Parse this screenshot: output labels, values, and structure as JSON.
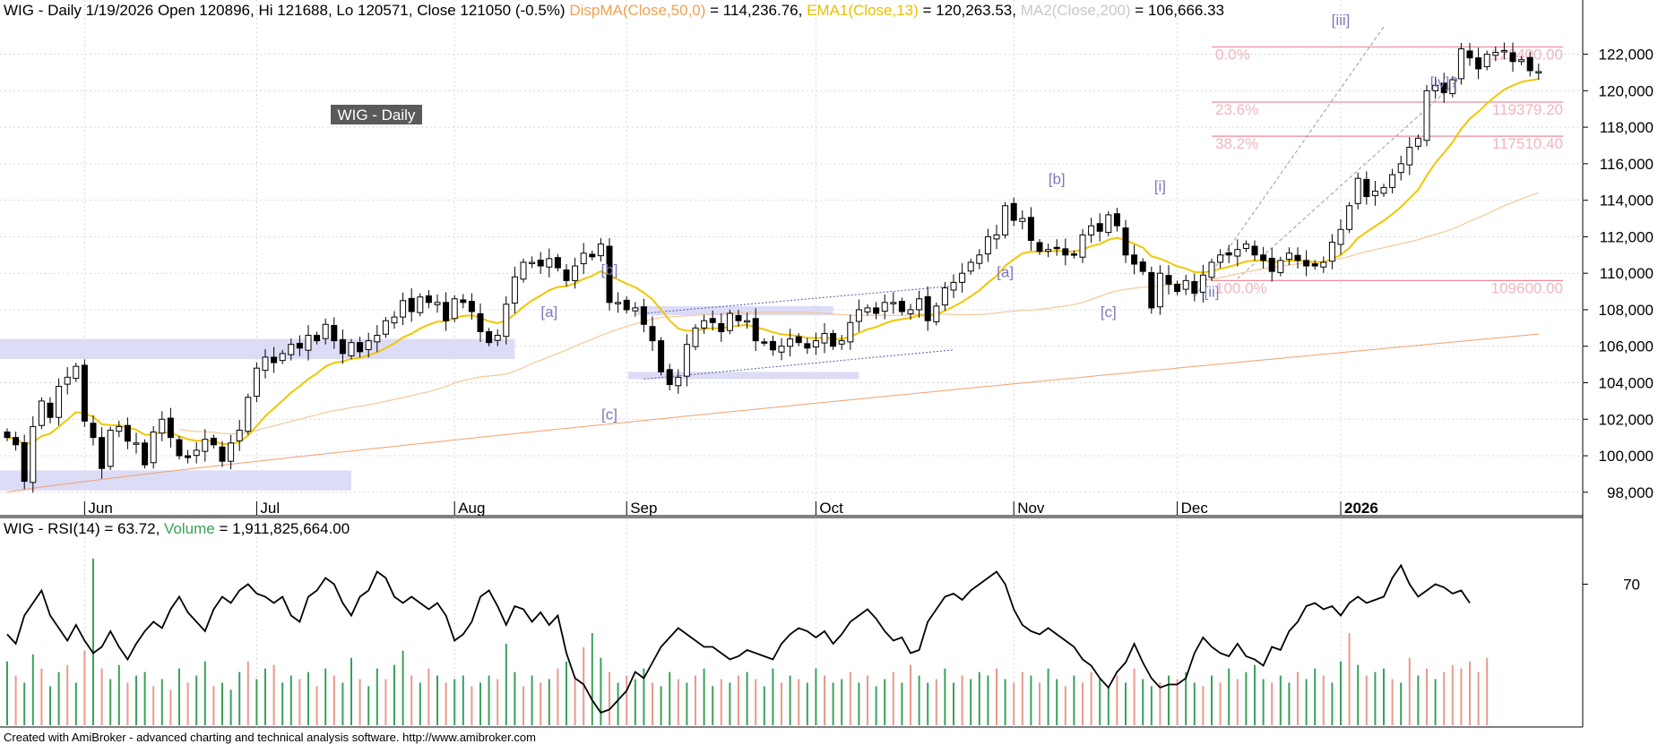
{
  "header": {
    "symbol_line": "WIG - Daily 1/19/2026 Open 120896, Hi 121688, Lo 120571, Close 121050 (-0.5%)",
    "dispma_label": "DispMA(Close,50,0)",
    "dispma_value": " = 114,236.76, ",
    "ema_label": "EMA1(Close,13)",
    "ema_value": " = 120,263.53, ",
    "ma200_label": "MA2(Close,200)",
    "ma200_value": " = 106,666.33"
  },
  "watermark": "WIG - Daily",
  "rsi_header": {
    "rsi_label": "WIG - RSI(14) = 63.72, ",
    "volume_label": "Volume",
    "volume_value": " = 1,911,825,664.00"
  },
  "footer": "Created with AmiBroker - advanced charting and technical analysis software. http://www.amibroker.com",
  "colors": {
    "ema": "#f2c600",
    "ma200": "#f0a070",
    "dispma_text": "#f0a050",
    "ema_text": "#e6c000",
    "ma200_text": "#c8c8c8",
    "fib": "#f08a9a",
    "fib_text": "#f0b6bf",
    "zone": "#dcdcf6",
    "wave_label": "#7a7ab8",
    "vol_up": "#3aa05a",
    "vol_down": "#e89a8a",
    "volume_text": "#3aa05a"
  },
  "chart_data": {
    "type": "candlestick",
    "title": "WIG - Daily",
    "ylim": [
      97500,
      123500
    ],
    "yticks": [
      98000,
      100000,
      102000,
      104000,
      106000,
      108000,
      110000,
      112000,
      114000,
      116000,
      118000,
      120000,
      122000
    ],
    "ytick_labels": [
      "98,000",
      "100,000",
      "102,000",
      "104,000",
      "106,000",
      "108,000",
      "110,000",
      "112,000",
      "114,000",
      "116,000",
      "118,000",
      "120,000",
      "122,000"
    ],
    "months": [
      {
        "label": "Jun",
        "index": 9,
        "bold": false
      },
      {
        "label": "Jul",
        "index": 29,
        "bold": false
      },
      {
        "label": "Aug",
        "index": 52,
        "bold": false
      },
      {
        "label": "Sep",
        "index": 72,
        "bold": false
      },
      {
        "label": "Oct",
        "index": 94,
        "bold": false
      },
      {
        "label": "Nov",
        "index": 117,
        "bold": false
      },
      {
        "label": "Dec",
        "index": 136,
        "bold": false
      },
      {
        "label": "2026",
        "index": 155,
        "bold": true
      }
    ],
    "closes": [
      101000,
      100600,
      98600,
      101600,
      103000,
      102100,
      103800,
      104300,
      104900,
      101900,
      101000,
      99300,
      101400,
      101600,
      100800,
      100700,
      99500,
      101300,
      102000,
      101000,
      100000,
      99900,
      100300,
      100900,
      100600,
      99700,
      100700,
      101400,
      103200,
      104800,
      105400,
      105100,
      105600,
      106100,
      105900,
      106600,
      106300,
      107200,
      106300,
      105600,
      106200,
      105700,
      106300,
      106600,
      107400,
      107600,
      108500,
      107900,
      108700,
      108400,
      108400,
      107400,
      108600,
      108400,
      107900,
      106800,
      106200,
      106600,
      108300,
      109800,
      110600,
      110600,
      110400,
      110800,
      110300,
      109600,
      110400,
      111100,
      110900,
      111600,
      108400,
      108400,
      108000,
      108100,
      107200,
      106300,
      104600,
      103900,
      104300,
      106100,
      107000,
      107400,
      107300,
      106800,
      107800,
      107400,
      107400,
      106300,
      106200,
      105800,
      106000,
      106400,
      106200,
      105900,
      106300,
      106700,
      106000,
      106300,
      107300,
      108000,
      108100,
      107800,
      108400,
      108400,
      107900,
      108000,
      108600,
      107400,
      108200,
      109200,
      109500,
      110000,
      110600,
      111000,
      112000,
      112100,
      113700,
      112900,
      113000,
      111800,
      111200,
      111300,
      111400,
      111000,
      111000,
      112100,
      112600,
      112300,
      113200,
      112600,
      111000,
      110500,
      110100,
      108100,
      110000,
      109400,
      109000,
      109600,
      108900,
      109900,
      110600,
      111000,
      111000,
      111300,
      111600,
      111000,
      110700,
      110100,
      110700,
      111100,
      110700,
      110400,
      110400,
      110600,
      111700,
      112400,
      113700,
      115200,
      114200,
      114500,
      114700,
      115400,
      116000,
      116900,
      117400,
      120000,
      120300,
      119900,
      120600,
      122300,
      121800,
      121200,
      122000,
      122100,
      122200,
      121600,
      121700,
      121100,
      121050
    ],
    "yearly_last_index": 160,
    "ema_last": 120263.53,
    "dispma_last": 114236.76,
    "ma200_last": 106666.33,
    "fib_levels": [
      {
        "label": "0.0%",
        "value": 122400,
        "price_label": "122400.00"
      },
      {
        "label": "23.6%",
        "value": 119379.2,
        "price_label": "119379.20"
      },
      {
        "label": "38.2%",
        "value": 117510.4,
        "price_label": "117510.40"
      },
      {
        "label": "100.0%",
        "value": 109600,
        "price_label": "109600.00"
      }
    ],
    "wave_labels": [
      {
        "text": "[a]",
        "index": 63,
        "value": 107600
      },
      {
        "text": "[b]",
        "index": 70,
        "value": 109900
      },
      {
        "text": "[c]",
        "index": 70,
        "value": 102000
      },
      {
        "text": "[a]",
        "index": 116,
        "value": 109800
      },
      {
        "text": "[b]",
        "index": 122,
        "value": 114900
      },
      {
        "text": "[c]",
        "index": 128,
        "value": 107600
      },
      {
        "text": "[i]",
        "index": 134,
        "value": 114500
      },
      {
        "text": "[ii]",
        "index": 140,
        "value": 108700
      },
      {
        "text": "[iii]",
        "index": 155,
        "value": 123600
      },
      {
        "text": "[iv]?",
        "index": 167,
        "value": 120200
      }
    ],
    "rsi": {
      "label": "RSI(14)",
      "last": 63.72,
      "tick": 70,
      "ylim": [
        25,
        85
      ],
      "values": [
        54,
        51,
        60,
        64,
        68,
        60,
        56,
        52,
        57,
        52,
        48,
        50,
        55,
        50,
        46,
        51,
        55,
        58,
        56,
        62,
        66,
        61,
        58,
        55,
        62,
        66,
        64,
        68,
        70,
        67,
        66,
        64,
        66,
        60,
        58,
        66,
        68,
        72,
        70,
        64,
        60,
        66,
        68,
        74,
        72,
        66,
        64,
        66,
        64,
        62,
        64,
        60,
        52,
        54,
        58,
        66,
        68,
        63,
        57,
        63,
        62,
        58,
        61,
        57,
        60,
        48,
        40,
        38,
        33,
        29,
        30,
        33,
        36,
        42,
        40,
        45,
        50,
        53,
        56,
        54,
        52,
        50,
        50,
        48,
        46,
        47,
        49,
        48,
        47,
        46,
        51,
        54,
        56,
        55,
        53,
        55,
        51,
        54,
        58,
        60,
        62,
        59,
        55,
        52,
        53,
        48,
        49,
        58,
        62,
        66,
        67,
        65,
        68,
        70,
        72,
        74,
        70,
        62,
        57,
        55,
        54,
        56,
        54,
        52,
        50,
        46,
        44,
        40,
        37,
        42,
        45,
        51,
        45,
        40,
        37,
        38,
        38,
        40,
        48,
        53,
        50,
        48,
        47,
        51,
        47,
        46,
        44,
        50,
        49,
        55,
        58,
        63,
        64,
        62,
        63,
        60,
        64,
        66,
        64,
        65,
        66,
        72,
        76,
        70,
        66,
        68,
        70,
        69,
        67,
        68,
        64
      ]
    },
    "volume": {
      "label": "Volume",
      "last": 1911825664.0,
      "max": 4800000000,
      "values": [
        1.8,
        1.4,
        1.2,
        2.0,
        1.6,
        1.1,
        1.5,
        1.7,
        1.2,
        2.1,
        4.7,
        1.6,
        1.3,
        1.7,
        1.2,
        1.4,
        1.5,
        1.1,
        1.3,
        1.0,
        1.6,
        1.2,
        1.4,
        1.8,
        1.1,
        1.2,
        1.0,
        1.5,
        1.8,
        1.3,
        1.6,
        1.7,
        1.2,
        1.4,
        1.3,
        1.5,
        1.1,
        1.6,
        1.4,
        1.2,
        1.9,
        1.3,
        1.1,
        1.6,
        1.3,
        1.7,
        2.1,
        1.4,
        1.2,
        1.6,
        1.4,
        1.2,
        1.3,
        1.4,
        1.1,
        1.2,
        1.4,
        1.3,
        2.3,
        1.5,
        1.1,
        1.4,
        1.2,
        1.3,
        1.6,
        1.8,
        1.4,
        2.2,
        2.6,
        1.9,
        1.5,
        1.2,
        1.4,
        1.3,
        1.6,
        1.2,
        1.1,
        1.5,
        1.3,
        1.2,
        1.4,
        1.6,
        1.1,
        1.3,
        1.2,
        1.4,
        1.5,
        1.3,
        1.1,
        1.6,
        1.2,
        1.4,
        1.3,
        1.2,
        1.6,
        1.4,
        1.2,
        1.3,
        1.5,
        1.2,
        1.4,
        1.1,
        1.3,
        1.5,
        1.2,
        1.7,
        1.4,
        1.2,
        1.3,
        1.6,
        1.2,
        1.4,
        1.3,
        1.5,
        1.4,
        1.6,
        1.3,
        1.2,
        1.5,
        1.4,
        1.2,
        1.6,
        1.3,
        1.1,
        1.4,
        1.2,
        1.5,
        1.3,
        1.1,
        1.4,
        1.2,
        1.6,
        1.3,
        1.1,
        1.2,
        1.4,
        1.3,
        1.5,
        1.2,
        1.1,
        1.4,
        1.2,
        1.6,
        1.3,
        1.5,
        1.7,
        1.3,
        1.2,
        1.4,
        1.2,
        1.5,
        1.3,
        1.6,
        1.4,
        1.2,
        1.8,
        2.6,
        1.7,
        1.4,
        1.5,
        1.6,
        1.3,
        1.2,
        1.9,
        1.4,
        1.6,
        1.3,
        1.5,
        1.7,
        1.6,
        1.8,
        1.5,
        1.9
      ],
      "up": [
        1,
        0,
        1,
        1,
        0,
        1,
        1,
        0,
        1,
        0,
        1,
        0,
        1,
        1,
        0,
        1,
        1,
        0,
        1,
        0,
        1,
        0,
        1,
        1,
        0,
        1,
        1,
        1,
        0,
        1,
        1,
        0,
        1,
        1,
        0,
        1,
        0,
        1,
        0,
        1,
        1,
        0,
        1,
        1,
        0,
        1,
        1,
        0,
        1,
        0,
        1,
        0,
        1,
        1,
        0,
        1,
        1,
        0,
        1,
        1,
        0,
        1,
        0,
        1,
        0,
        1,
        0,
        0,
        1,
        1,
        0,
        1,
        0,
        1,
        1,
        0,
        1,
        1,
        0,
        1,
        0,
        1,
        1,
        0,
        1,
        0,
        1,
        0,
        1,
        1,
        0,
        1,
        0,
        1,
        1,
        0,
        1,
        1,
        0,
        1,
        0,
        1,
        1,
        0,
        1,
        0,
        1,
        1,
        0,
        1,
        1,
        0,
        1,
        1,
        1,
        0,
        1,
        0,
        0,
        1,
        0,
        1,
        1,
        0,
        1,
        0,
        0,
        1,
        1,
        0,
        1,
        0,
        1,
        1,
        0,
        1,
        0,
        1,
        1,
        0,
        1,
        0,
        1,
        0,
        1,
        1,
        1,
        0,
        1,
        1,
        0,
        1,
        1,
        0,
        1,
        1,
        0,
        1,
        0,
        1,
        1,
        0,
        1,
        0,
        1,
        0,
        1
      ]
    }
  }
}
